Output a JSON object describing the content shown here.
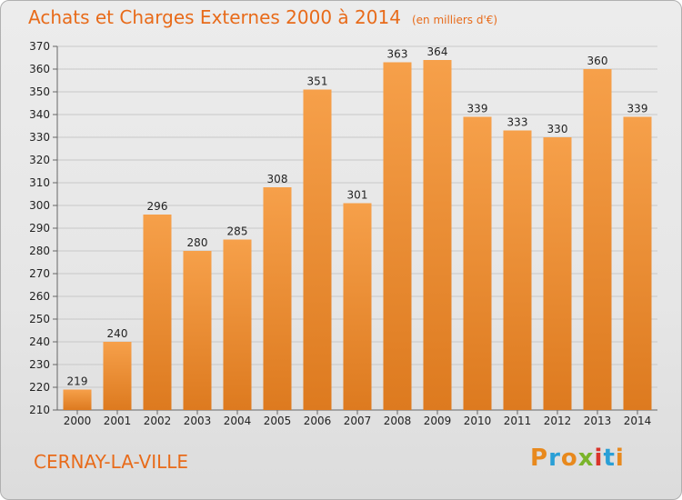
{
  "header": {
    "title": "Achats et Charges Externes 2000 à 2014",
    "unit": "(en milliers d'€)"
  },
  "footer": {
    "commune": "CERNAY-LA-VILLE",
    "logo": "Proxiti",
    "logo_colors": [
      "#e8891d",
      "#2a9fd6",
      "#e8891d",
      "#7ab42a",
      "#d9342b",
      "#2a9fd6",
      "#e8891d"
    ]
  },
  "colors": {
    "bar_top": "#f6a04a",
    "bar_bottom": "#dd7a1f",
    "title": "#e86b1a",
    "grid": "#c8c8c8"
  },
  "chart_data": {
    "type": "bar",
    "title": "Achats et Charges Externes 2000 à 2014",
    "subtitle": "(en milliers d'€)",
    "xlabel": "",
    "ylabel": "",
    "categories": [
      "2000",
      "2001",
      "2002",
      "2003",
      "2004",
      "2005",
      "2006",
      "2007",
      "2008",
      "2009",
      "2010",
      "2011",
      "2012",
      "2013",
      "2014"
    ],
    "values": [
      219,
      240,
      296,
      280,
      285,
      308,
      351,
      301,
      363,
      364,
      339,
      333,
      330,
      360,
      339
    ],
    "ylim": [
      210,
      370
    ],
    "yticks": [
      210,
      220,
      230,
      240,
      250,
      260,
      270,
      280,
      290,
      300,
      310,
      320,
      330,
      340,
      350,
      360,
      370
    ],
    "grid": true,
    "legend": "none"
  }
}
